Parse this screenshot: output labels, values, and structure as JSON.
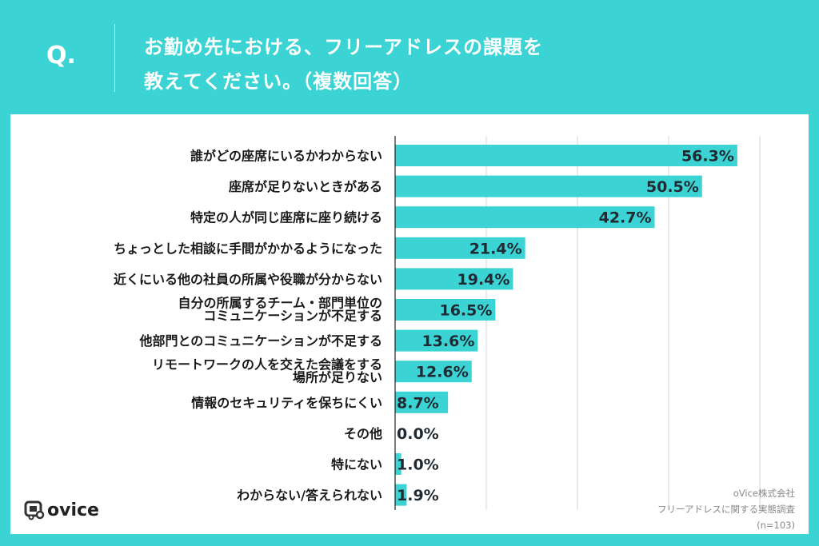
{
  "header": {
    "q_label": "Q.",
    "title_line1": "お勤め先における、フリーアドレスの課題を",
    "title_line2": "教えてください。（複数回答）"
  },
  "colors": {
    "background": "#3bd3d3",
    "bar": "#3bd3d3",
    "panel": "#ffffff",
    "text": "#1a1a1a"
  },
  "chart_data": {
    "type": "bar",
    "orientation": "horizontal",
    "title": "お勤め先における、フリーアドレスの課題を教えてください。（複数回答）",
    "xlabel": "",
    "ylabel": "",
    "xlim": [
      0,
      60
    ],
    "xgrid": [
      0,
      15,
      30,
      45,
      60
    ],
    "grid": true,
    "unit": "%",
    "categories": [
      [
        "誰がどの座席にいるかわからない"
      ],
      [
        "座席が足りないときがある"
      ],
      [
        "特定の人が同じ座席に座り続ける"
      ],
      [
        "ちょっとした相談に手間がかかるようになった"
      ],
      [
        "近くにいる他の社員の所属や役職が分からない"
      ],
      [
        "自分の所属するチーム・部門単位の",
        "コミュニケーションが不足する"
      ],
      [
        "他部門とのコミュニケーションが不足する"
      ],
      [
        "リモートワークの人を交えた会議をする",
        "場所が足りない"
      ],
      [
        "情報のセキュリティを保ちにくい"
      ],
      [
        "その他"
      ],
      [
        "特にない"
      ],
      [
        "わからない/答えられない"
      ]
    ],
    "values": [
      56.3,
      50.5,
      42.7,
      21.4,
      19.4,
      16.5,
      13.6,
      12.6,
      8.7,
      0.0,
      1.0,
      1.9
    ],
    "labels": [
      "56.3%",
      "50.5%",
      "42.7%",
      "21.4%",
      "19.4%",
      "16.5%",
      "13.6%",
      "12.6%",
      "8.7%",
      "0.0%",
      "1.0%",
      "1.9%"
    ]
  },
  "footer": {
    "logo_text": "ovice",
    "source_line1": "oVice株式会社",
    "source_line2": "フリーアドレスに関する実態調査",
    "source_line3": "(n=103)"
  }
}
